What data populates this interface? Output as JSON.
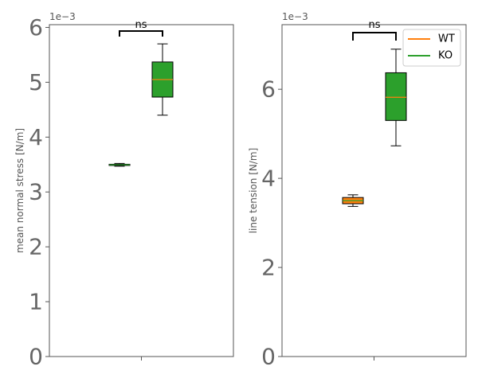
{
  "chart_data": [
    {
      "type": "box",
      "ylabel": "mean normal stress [N/m]",
      "exponent_label": "1e−3",
      "ylim": [
        0,
        6.05
      ],
      "yticks": [
        0,
        1,
        2,
        3,
        4,
        5,
        6
      ],
      "significance": "ns",
      "grid": false,
      "series": [
        {
          "name": "WT",
          "color": "#ff7f0e",
          "whisker_low": 3.47,
          "q1": 3.485,
          "median": 3.495,
          "q3": 3.505,
          "whisker_high": 3.52
        },
        {
          "name": "KO",
          "color": "#2ca02c",
          "whisker_low": 4.4,
          "q1": 4.73,
          "median": 5.05,
          "q3": 5.37,
          "whisker_high": 5.7
        }
      ]
    },
    {
      "type": "box",
      "ylabel": "line tension [N/m]",
      "exponent_label": "1e−3",
      "ylim": [
        0,
        7.45
      ],
      "yticks": [
        0,
        2,
        4,
        6
      ],
      "significance": "ns",
      "grid": false,
      "legend": {
        "position": "top-right",
        "entries": [
          "WT",
          "KO"
        ]
      },
      "series": [
        {
          "name": "WT",
          "color": "#ff7f0e",
          "whisker_low": 3.37,
          "q1": 3.43,
          "median": 3.5,
          "q3": 3.57,
          "whisker_high": 3.63
        },
        {
          "name": "KO",
          "color": "#2ca02c",
          "whisker_low": 4.73,
          "q1": 5.3,
          "median": 5.82,
          "q3": 6.37,
          "whisker_high": 6.9
        }
      ]
    }
  ]
}
